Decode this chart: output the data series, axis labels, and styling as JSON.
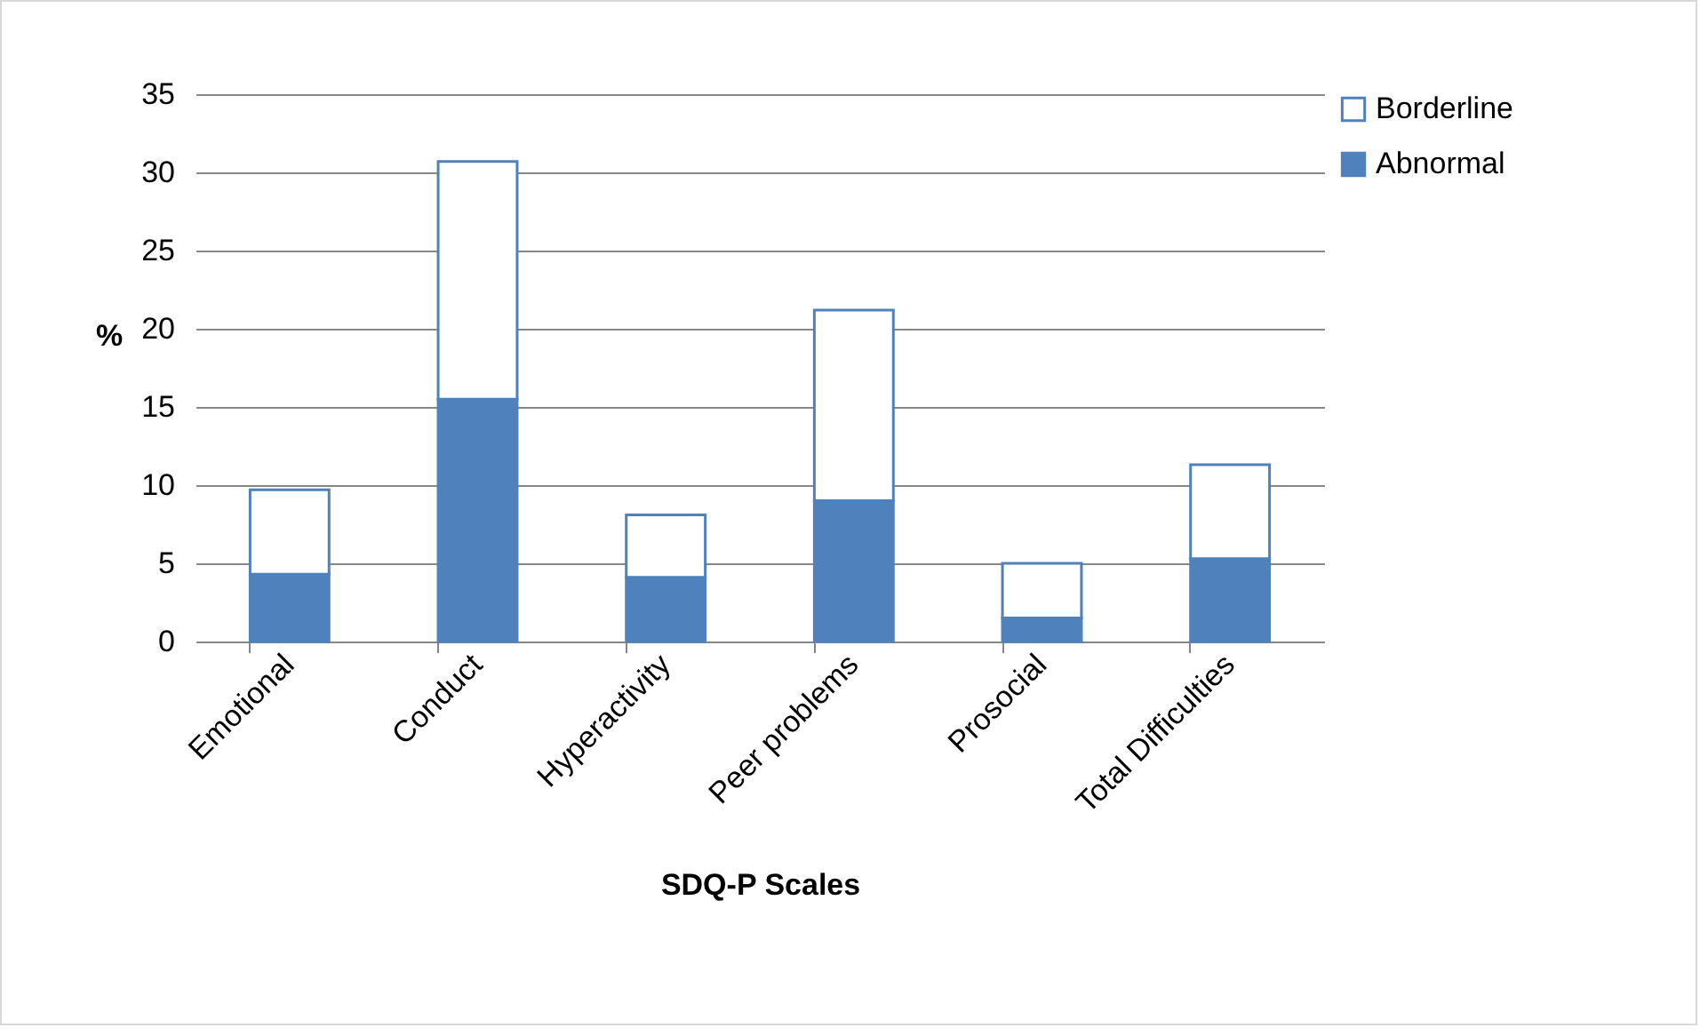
{
  "chart_data": {
    "type": "bar",
    "stacked": true,
    "xlabel": "SDQ-P Scales",
    "ylabel": "%",
    "categories": [
      "Emotional",
      "Conduct",
      "Hyperactivity",
      "Peer problems",
      "Prosocial",
      "Total Difficulties"
    ],
    "series": [
      {
        "name": "Abnormal",
        "color": "#4f81bd",
        "values": [
          4.3,
          15.5,
          4.1,
          9.0,
          1.5,
          5.3
        ]
      },
      {
        "name": "Borderline",
        "color": "#ffffff",
        "values": [
          5.4,
          15.2,
          4.0,
          12.2,
          3.5,
          6.0
        ]
      }
    ],
    "ylim": [
      0,
      35
    ],
    "yticks": [
      0,
      5,
      10,
      15,
      20,
      25,
      30,
      35
    ],
    "grid": "y",
    "legend": "right"
  }
}
